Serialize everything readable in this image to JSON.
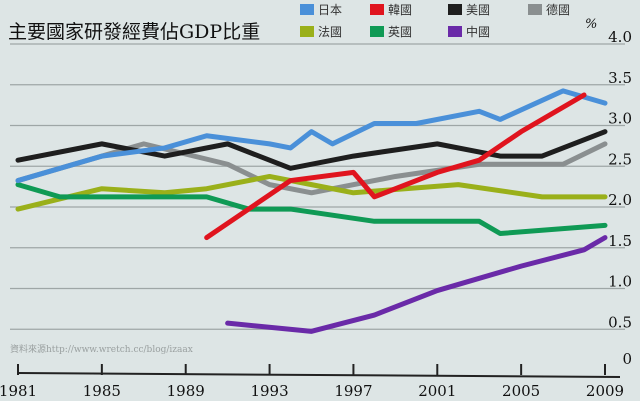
{
  "chart_data": {
    "type": "line",
    "title": "主要國家研發經費佔GDP比重",
    "ylabel": "%",
    "source": "資料來源http://www.wretch.cc/blog/izaax",
    "xlim": [
      1981,
      2009
    ],
    "ylim": [
      0,
      4.0
    ],
    "x_ticks": [
      1981,
      1985,
      1989,
      1993,
      1997,
      2001,
      2005,
      2009
    ],
    "y_ticks": [
      "0",
      "0.5",
      "1.0",
      "1.5",
      "2.0",
      "2.5",
      "3.0",
      "3.5",
      "4.0"
    ],
    "grid": true,
    "legend_position": "top",
    "series": [
      {
        "name": "日本",
        "color": "#4a90d9",
        "points": [
          [
            1981,
            2.3
          ],
          [
            1985,
            2.6
          ],
          [
            1988,
            2.7
          ],
          [
            1990,
            2.85
          ],
          [
            1993,
            2.75
          ],
          [
            1994,
            2.7
          ],
          [
            1995,
            2.9
          ],
          [
            1996,
            2.75
          ],
          [
            1998,
            3.0
          ],
          [
            2000,
            3.0
          ],
          [
            2003,
            3.15
          ],
          [
            2004,
            3.05
          ],
          [
            2007,
            3.4
          ],
          [
            2009,
            3.25
          ]
        ]
      },
      {
        "name": "韓國",
        "color": "#e0141e",
        "points": [
          [
            1990,
            1.6
          ],
          [
            1994,
            2.3
          ],
          [
            1997,
            2.4
          ],
          [
            1998,
            2.1
          ],
          [
            2001,
            2.4
          ],
          [
            2003,
            2.55
          ],
          [
            2005,
            2.9
          ],
          [
            2008,
            3.35
          ]
        ]
      },
      {
        "name": "美國",
        "color": "#1e1e1e",
        "points": [
          [
            1981,
            2.55
          ],
          [
            1985,
            2.75
          ],
          [
            1988,
            2.6
          ],
          [
            1991,
            2.75
          ],
          [
            1994,
            2.45
          ],
          [
            1997,
            2.6
          ],
          [
            2001,
            2.75
          ],
          [
            2004,
            2.6
          ],
          [
            2006,
            2.6
          ],
          [
            2009,
            2.9
          ]
        ]
      },
      {
        "name": "德國",
        "color": "#8a8f90",
        "points": [
          [
            1981,
            2.3
          ],
          [
            1987,
            2.75
          ],
          [
            1991,
            2.5
          ],
          [
            1993,
            2.25
          ],
          [
            1995,
            2.15
          ],
          [
            1999,
            2.35
          ],
          [
            2003,
            2.5
          ],
          [
            2007,
            2.5
          ],
          [
            2009,
            2.75
          ]
        ]
      },
      {
        "name": "法國",
        "color": "#9ab01a",
        "points": [
          [
            1981,
            1.95
          ],
          [
            1985,
            2.2
          ],
          [
            1988,
            2.15
          ],
          [
            1990,
            2.2
          ],
          [
            1993,
            2.35
          ],
          [
            1995,
            2.25
          ],
          [
            1997,
            2.15
          ],
          [
            2002,
            2.25
          ],
          [
            2006,
            2.1
          ],
          [
            2009,
            2.1
          ]
        ]
      },
      {
        "name": "英國",
        "color": "#0f9a55",
        "points": [
          [
            1981,
            2.25
          ],
          [
            1983,
            2.1
          ],
          [
            1990,
            2.1
          ],
          [
            1992,
            1.95
          ],
          [
            1994,
            1.95
          ],
          [
            1998,
            1.8
          ],
          [
            2003,
            1.8
          ],
          [
            2004,
            1.65
          ],
          [
            2009,
            1.75
          ]
        ]
      },
      {
        "name": "中國",
        "color": "#6a2aa8",
        "points": [
          [
            1991,
            0.55
          ],
          [
            1995,
            0.45
          ],
          [
            1998,
            0.65
          ],
          [
            2001,
            0.95
          ],
          [
            2005,
            1.25
          ],
          [
            2008,
            1.45
          ],
          [
            2009,
            1.6
          ]
        ]
      }
    ]
  }
}
